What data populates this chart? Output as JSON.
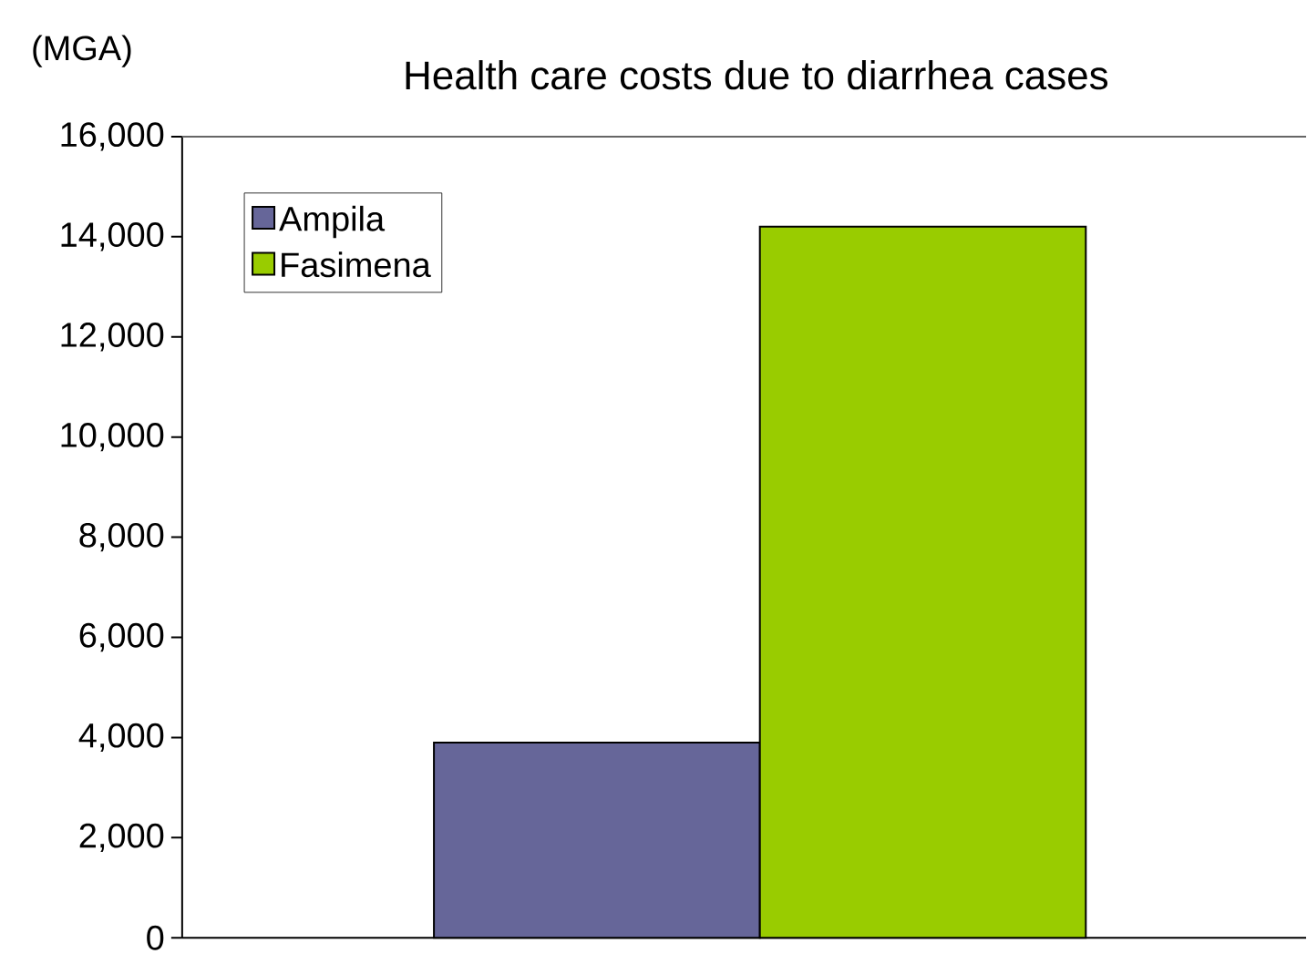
{
  "chart_data": {
    "type": "bar",
    "title": "Health care costs due to diarrhea cases",
    "ylabel": "(MGA)",
    "categories": [
      null
    ],
    "series": [
      {
        "name": "Ampila",
        "color": "#666699",
        "values": [
          3900
        ]
      },
      {
        "name": "Fasimena",
        "color": "#99cc00",
        "values": [
          14200
        ]
      }
    ],
    "ylim": [
      0,
      16000
    ],
    "yticks": [
      {
        "value": 0,
        "label": "0"
      },
      {
        "value": 2000,
        "label": "2,000"
      },
      {
        "value": 4000,
        "label": "4,000"
      },
      {
        "value": 6000,
        "label": "6,000"
      },
      {
        "value": 8000,
        "label": "8,000"
      },
      {
        "value": 10000,
        "label": "10,000"
      },
      {
        "value": 12000,
        "label": "12,000"
      },
      {
        "value": 14000,
        "label": "14,000"
      },
      {
        "value": 16000,
        "label": "16,000"
      }
    ],
    "grid": false,
    "legend": "top left"
  }
}
